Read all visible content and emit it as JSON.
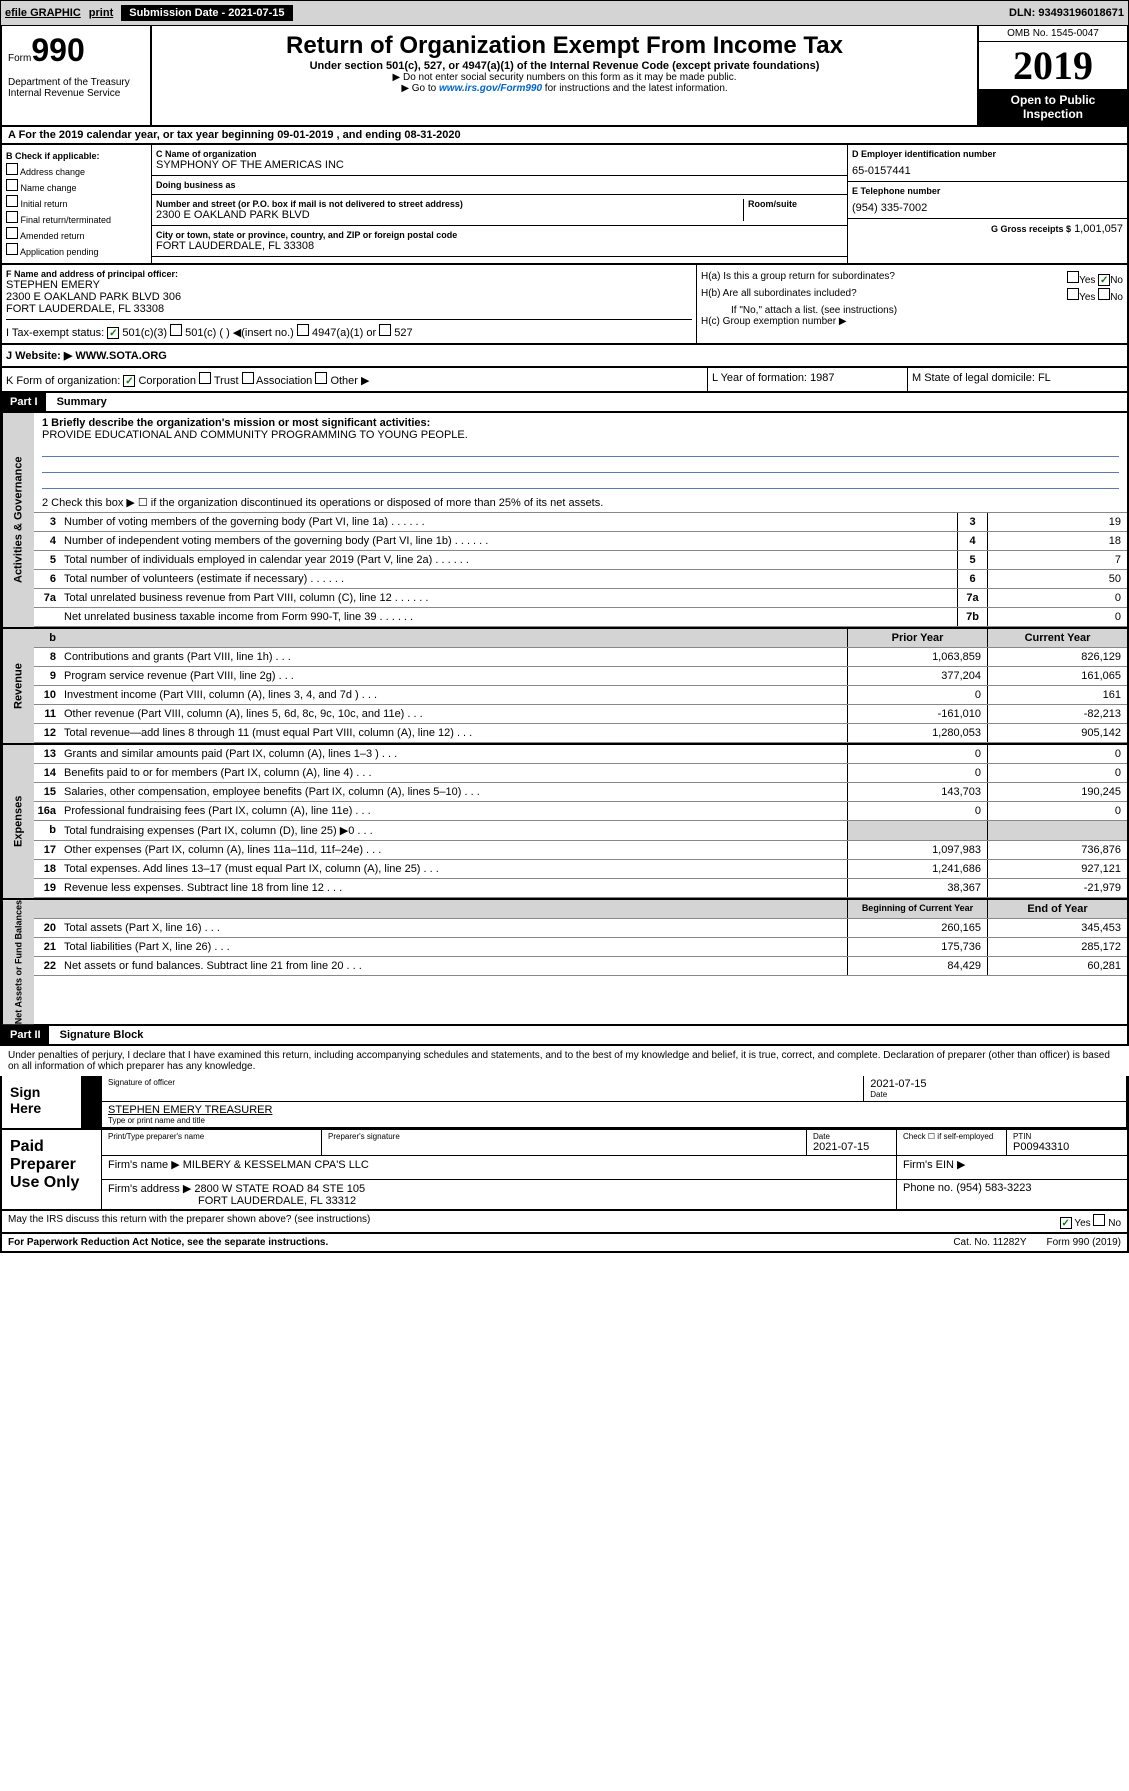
{
  "topbar": {
    "efile": "efile GRAPHIC",
    "print": "print",
    "sub_label": "Submission Date - 2021-07-15",
    "dln": "DLN: 93493196018671"
  },
  "header": {
    "form_prefix": "Form",
    "form_num": "990",
    "dept": "Department of the Treasury\nInternal Revenue Service",
    "title": "Return of Organization Exempt From Income Tax",
    "subtitle": "Under section 501(c), 527, or 4947(a)(1) of the Internal Revenue Code (except private foundations)",
    "instr1": "▶ Do not enter social security numbers on this form as it may be made public.",
    "instr2_pre": "▶ Go to ",
    "instr2_link": "www.irs.gov/Form990",
    "instr2_post": " for instructions and the latest information.",
    "omb": "OMB No. 1545-0047",
    "year": "2019",
    "open": "Open to Public Inspection"
  },
  "period": {
    "text": "A For the 2019 calendar year, or tax year beginning 09-01-2019   , and ending 08-31-2020"
  },
  "box_b": {
    "label": "B Check if applicable:",
    "items": [
      "Address change",
      "Name change",
      "Initial return",
      "Final return/terminated",
      "Amended return",
      "Application pending"
    ]
  },
  "org": {
    "name_label": "C Name of organization",
    "name": "SYMPHONY OF THE AMERICAS INC",
    "dba_label": "Doing business as",
    "dba": "",
    "addr_label": "Number and street (or P.O. box if mail is not delivered to street address)",
    "addr": "2300 E OAKLAND PARK BLVD",
    "room_label": "Room/suite",
    "city_label": "City or town, state or province, country, and ZIP or foreign postal code",
    "city": "FORT LAUDERDALE, FL  33308"
  },
  "ein": {
    "label": "D Employer identification number",
    "val": "65-0157441"
  },
  "tel": {
    "label": "E Telephone number",
    "val": "(954) 335-7002"
  },
  "gross": {
    "label": "G Gross receipts $",
    "val": "1,001,057"
  },
  "officer": {
    "label": "F Name and address of principal officer:",
    "name": "STEPHEN EMERY",
    "addr1": "2300 E OAKLAND PARK BLVD 306",
    "addr2": "FORT LAUDERDALE, FL  33308"
  },
  "hq": {
    "ha": "H(a)  Is this a group return for subordinates?",
    "hb": "H(b)  Are all subordinates included?",
    "hb_note": "If \"No,\" attach a list. (see instructions)",
    "hc": "H(c)  Group exemption number ▶"
  },
  "tax_status": {
    "label": "I   Tax-exempt status:",
    "opts": [
      "501(c)(3)",
      "501(c) (  ) ◀(insert no.)",
      "4947(a)(1) or",
      "527"
    ]
  },
  "website": {
    "label": "J   Website: ▶",
    "val": "WWW.SOTA.ORG"
  },
  "korg": {
    "label": "K Form of organization:",
    "opts": [
      "Corporation",
      "Trust",
      "Association",
      "Other ▶"
    ],
    "year_label": "L Year of formation:",
    "year": "1987",
    "state_label": "M State of legal domicile:",
    "state": "FL"
  },
  "part1": {
    "header": "Part I",
    "title": "Summary",
    "line1_label": "1  Briefly describe the organization's mission or most significant activities:",
    "mission": "PROVIDE EDUCATIONAL AND COMMUNITY PROGRAMMING TO YOUNG PEOPLE.",
    "line2": "2   Check this box ▶ ☐  if the organization discontinued its operations or disposed of more than 25% of its net assets."
  },
  "governance": {
    "label": "Activities & Governance",
    "rows": [
      {
        "num": "3",
        "text": "Number of voting members of the governing body (Part VI, line 1a)",
        "box": "3",
        "val": "19"
      },
      {
        "num": "4",
        "text": "Number of independent voting members of the governing body (Part VI, line 1b)",
        "box": "4",
        "val": "18"
      },
      {
        "num": "5",
        "text": "Total number of individuals employed in calendar year 2019 (Part V, line 2a)",
        "box": "5",
        "val": "7"
      },
      {
        "num": "6",
        "text": "Total number of volunteers (estimate if necessary)",
        "box": "6",
        "val": "50"
      },
      {
        "num": "7a",
        "text": "Total unrelated business revenue from Part VIII, column (C), line 12",
        "box": "7a",
        "val": "0"
      },
      {
        "num": "",
        "text": "Net unrelated business taxable income from Form 990-T, line 39",
        "box": "7b",
        "val": "0"
      }
    ]
  },
  "revenue": {
    "label": "Revenue",
    "header_prior": "Prior Year",
    "header_current": "Current Year",
    "rows": [
      {
        "num": "8",
        "text": "Contributions and grants (Part VIII, line 1h)",
        "prior": "1,063,859",
        "current": "826,129"
      },
      {
        "num": "9",
        "text": "Program service revenue (Part VIII, line 2g)",
        "prior": "377,204",
        "current": "161,065"
      },
      {
        "num": "10",
        "text": "Investment income (Part VIII, column (A), lines 3, 4, and 7d )",
        "prior": "0",
        "current": "161"
      },
      {
        "num": "11",
        "text": "Other revenue (Part VIII, column (A), lines 5, 6d, 8c, 9c, 10c, and 11e)",
        "prior": "-161,010",
        "current": "-82,213"
      },
      {
        "num": "12",
        "text": "Total revenue—add lines 8 through 11 (must equal Part VIII, column (A), line 12)",
        "prior": "1,280,053",
        "current": "905,142"
      }
    ]
  },
  "expenses": {
    "label": "Expenses",
    "rows": [
      {
        "num": "13",
        "text": "Grants and similar amounts paid (Part IX, column (A), lines 1–3 )",
        "prior": "0",
        "current": "0"
      },
      {
        "num": "14",
        "text": "Benefits paid to or for members (Part IX, column (A), line 4)",
        "prior": "0",
        "current": "0"
      },
      {
        "num": "15",
        "text": "Salaries, other compensation, employee benefits (Part IX, column (A), lines 5–10)",
        "prior": "143,703",
        "current": "190,245"
      },
      {
        "num": "16a",
        "text": "Professional fundraising fees (Part IX, column (A), line 11e)",
        "prior": "0",
        "current": "0"
      },
      {
        "num": "b",
        "text": "Total fundraising expenses (Part IX, column (D), line 25) ▶0",
        "prior": "",
        "current": ""
      },
      {
        "num": "17",
        "text": "Other expenses (Part IX, column (A), lines 11a–11d, 11f–24e)",
        "prior": "1,097,983",
        "current": "736,876"
      },
      {
        "num": "18",
        "text": "Total expenses. Add lines 13–17 (must equal Part IX, column (A), line 25)",
        "prior": "1,241,686",
        "current": "927,121"
      },
      {
        "num": "19",
        "text": "Revenue less expenses. Subtract line 18 from line 12",
        "prior": "38,367",
        "current": "-21,979"
      }
    ]
  },
  "netassets": {
    "label": "Net Assets or Fund Balances",
    "header_begin": "Beginning of Current Year",
    "header_end": "End of Year",
    "rows": [
      {
        "num": "20",
        "text": "Total assets (Part X, line 16)",
        "prior": "260,165",
        "current": "345,453"
      },
      {
        "num": "21",
        "text": "Total liabilities (Part X, line 26)",
        "prior": "175,736",
        "current": "285,172"
      },
      {
        "num": "22",
        "text": "Net assets or fund balances. Subtract line 21 from line 20",
        "prior": "84,429",
        "current": "60,281"
      }
    ]
  },
  "part2": {
    "header": "Part II",
    "title": "Signature Block",
    "declaration": "Under penalties of perjury, I declare that I have examined this return, including accompanying schedules and statements, and to the best of my knowledge and belief, it is true, correct, and complete. Declaration of preparer (other than officer) is based on all information of which preparer has any knowledge."
  },
  "sign": {
    "label": "Sign Here",
    "sig_officer": "Signature of officer",
    "date": "2021-07-15",
    "date_label": "Date",
    "name": "STEPHEN EMERY  TREASURER",
    "name_label": "Type or print name and title"
  },
  "paid": {
    "label": "Paid Preparer Use Only",
    "prep_name_label": "Print/Type preparer's name",
    "prep_sig_label": "Preparer's signature",
    "prep_date_label": "Date",
    "prep_date": "2021-07-15",
    "check_label": "Check ☐ if self-employed",
    "ptin_label": "PTIN",
    "ptin": "P00943310",
    "firm_name_label": "Firm's name    ▶",
    "firm_name": "MILBERY & KESSELMAN CPA'S LLC",
    "firm_ein_label": "Firm's EIN ▶",
    "firm_addr_label": "Firm's address ▶",
    "firm_addr1": "2800 W STATE ROAD 84 STE 105",
    "firm_addr2": "FORT LAUDERDALE, FL  33312",
    "phone_label": "Phone no.",
    "phone": "(954) 583-3223"
  },
  "footer": {
    "discuss": "May the IRS discuss this return with the preparer shown above? (see instructions)",
    "paperwork": "For Paperwork Reduction Act Notice, see the separate instructions.",
    "cat": "Cat. No. 11282Y",
    "form": "Form 990 (2019)"
  }
}
